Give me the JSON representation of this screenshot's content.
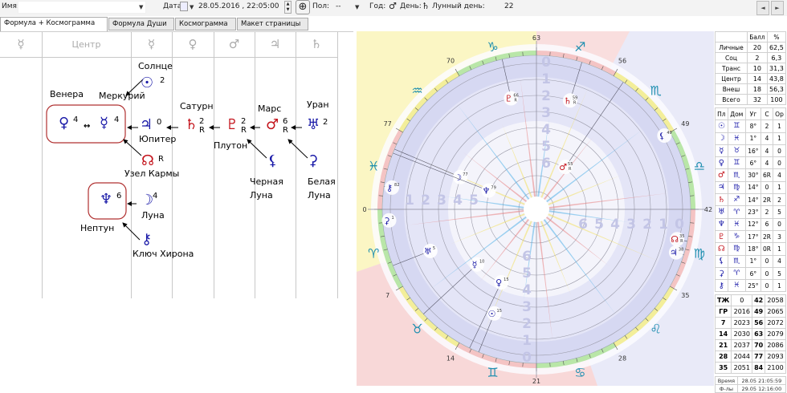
{
  "toolbar": {
    "name_label": "Имя:",
    "name_value": "",
    "date_label": "Дата:",
    "date_value": "28.05.2016 , 22:05:00",
    "gender_label": "Пол:",
    "gender_value": "--",
    "year_label": "Год:",
    "year_glyph": "♂",
    "day_label": "День:",
    "day_glyph": "♄",
    "lunar_day_label": "Лунный день:",
    "lunar_day_value": "22",
    "prev": "◄",
    "next": "►"
  },
  "tabs": [
    {
      "label": "Формула + Космограмма",
      "active": true
    },
    {
      "label": "Формула Души"
    },
    {
      "label": "Космограмма"
    },
    {
      "label": "Макет страницы"
    }
  ],
  "formula": {
    "column_headers": [
      "☿",
      "Центр",
      "☿",
      "♀",
      "♂",
      "♃",
      "♄"
    ],
    "planets": {
      "sun": {
        "name": "Солнце",
        "glyph": "☉",
        "score": "2"
      },
      "venus": {
        "name": "Венера",
        "glyph": "♀",
        "score": "4"
      },
      "mercury": {
        "name": "Меркурий",
        "glyph": "☿",
        "score": "4"
      },
      "jupiter": {
        "name": "Юпитер",
        "glyph": "♃",
        "score": "0"
      },
      "saturn": {
        "name": "Сатурн",
        "glyph": "♄",
        "score": "2",
        "retro": "R"
      },
      "pluto": {
        "name": "Плутон",
        "glyph": "♇",
        "score": "2",
        "retro": "R"
      },
      "mars": {
        "name": "Марс",
        "glyph": "♂",
        "score": "6",
        "retro": "R"
      },
      "uranus": {
        "name": "Уран",
        "glyph": "♅",
        "score": "2"
      },
      "node": {
        "name": "Узел Кармы",
        "glyph": "☊",
        "retro": "R"
      },
      "black_moon": {
        "name1": "Черная",
        "name2": "Луна",
        "glyph": "⚸"
      },
      "white_moon": {
        "name1": "Белая",
        "name2": "Луна",
        "glyph": "⚳"
      },
      "neptune": {
        "name": "Нептун",
        "glyph": "♆",
        "score": "6"
      },
      "moon": {
        "name": "Луна",
        "glyph": "☽",
        "score": "4"
      },
      "chiron": {
        "name": "Ключ Хирона",
        "glyph": "⚷"
      },
      "mutual": "↔",
      "arrow": "←"
    }
  },
  "chart": {
    "degree_labels": [
      "0",
      "7",
      "14",
      "21",
      "28",
      "35",
      "42",
      "49",
      "56",
      "63",
      "70",
      "77"
    ],
    "signs": [
      "♑",
      "♒",
      "♓",
      "♈",
      "♉",
      "♊",
      "♋",
      "♌",
      "♍",
      "♎",
      "♏",
      "♐"
    ],
    "scale_digits": [
      "0",
      "1",
      "2",
      "3",
      "4",
      "5",
      "6"
    ],
    "planets": [
      {
        "id": "pluto",
        "glyph": "♇",
        "value": "66",
        "retro": "R",
        "color": "#c4141c"
      },
      {
        "id": "saturn",
        "glyph": "♄",
        "value": "59",
        "retro": "R",
        "color": "#c4141c"
      },
      {
        "id": "lilith",
        "glyph": "⚸",
        "value": "49",
        "color": "#1a1aa8"
      },
      {
        "id": "mars",
        "glyph": "♂",
        "value": "55",
        "retro": "R",
        "color": "#c4141c"
      },
      {
        "id": "moon",
        "glyph": "☽",
        "value": "77",
        "color": "#1a1aa8"
      },
      {
        "id": "neptune",
        "glyph": "♆",
        "value": "79",
        "color": "#1a1aa8"
      },
      {
        "id": "chiron",
        "glyph": "⚷",
        "value": "82",
        "color": "#1a1aa8"
      },
      {
        "id": "selena",
        "glyph": "⚳",
        "value": "1",
        "color": "#1a1aa8"
      },
      {
        "id": "uranus",
        "glyph": "♅",
        "value": "5",
        "color": "#1a1aa8"
      },
      {
        "id": "mercury",
        "glyph": "☿",
        "value": "10",
        "color": "#1a1aa8"
      },
      {
        "id": "venus",
        "glyph": "♀",
        "value": "15",
        "color": "#1a1aa8"
      },
      {
        "id": "sun",
        "glyph": "☉",
        "value": "15",
        "color": "#1a1aa8"
      },
      {
        "id": "node",
        "glyph": "☊",
        "value": "35",
        "retro": "R",
        "color": "#c4141c"
      },
      {
        "id": "jupiter",
        "glyph": "♃",
        "value": "38",
        "color": "#1a1aa8"
      }
    ]
  },
  "summary": {
    "headers": [
      "",
      "Балл",
      "%"
    ],
    "rows": [
      [
        "Личные",
        "20",
        "62,5"
      ],
      [
        "Соц",
        "2",
        "6,3"
      ],
      [
        "Транс",
        "10",
        "31,3"
      ],
      [
        "Центр",
        "14",
        "43,8"
      ],
      [
        "Внеш",
        "18",
        "56,3"
      ],
      [
        "Всего",
        "32",
        "100"
      ]
    ]
  },
  "positions": {
    "headers": [
      "Пл",
      "Дом",
      "Уг",
      "С",
      "Ор"
    ],
    "rows": [
      {
        "glyph": "☉",
        "color": "#1a1aa8",
        "house": "♊",
        "deg": "8°",
        "s": "2",
        "or": "1"
      },
      {
        "glyph": "☽",
        "color": "#1a1aa8",
        "house": "♓",
        "deg": "1°",
        "s": "4",
        "or": "1"
      },
      {
        "glyph": "☿",
        "color": "#1a1aa8",
        "house": "♉",
        "deg": "16°",
        "s": "4",
        "or": "0"
      },
      {
        "glyph": "♀",
        "color": "#1a1aa8",
        "house": "♊",
        "deg": "6°",
        "s": "4",
        "or": "0"
      },
      {
        "glyph": "♂",
        "color": "#c4141c",
        "house": "♏",
        "deg": "30°",
        "s": "6R",
        "or": "4"
      },
      {
        "glyph": "♃",
        "color": "#1a1aa8",
        "house": "♍",
        "deg": "14°",
        "s": "0",
        "or": "1"
      },
      {
        "glyph": "♄",
        "color": "#c4141c",
        "house": "♐",
        "deg": "14°",
        "s": "2R",
        "or": "2"
      },
      {
        "glyph": "♅",
        "color": "#1a1aa8",
        "house": "♈",
        "deg": "23°",
        "s": "2",
        "or": "5"
      },
      {
        "glyph": "♆",
        "color": "#1a1aa8",
        "house": "♓",
        "deg": "12°",
        "s": "6",
        "or": "0"
      },
      {
        "glyph": "♇",
        "color": "#c4141c",
        "house": "♑",
        "deg": "17°",
        "s": "2R",
        "or": "3"
      },
      {
        "glyph": "☊",
        "color": "#c4141c",
        "house": "♍",
        "deg": "18°",
        "s": "0R",
        "or": "1"
      },
      {
        "glyph": "⚸",
        "color": "#1a1aa8",
        "house": "♏",
        "deg": "1°",
        "s": "0",
        "or": "4"
      },
      {
        "glyph": "⚳",
        "color": "#1a1aa8",
        "house": "♈",
        "deg": "6°",
        "s": "0",
        "or": "5"
      },
      {
        "glyph": "⚷",
        "color": "#1a1aa8",
        "house": "♓",
        "deg": "25°",
        "s": "0",
        "or": "1"
      }
    ]
  },
  "ages": {
    "rows": [
      [
        "ТЖ",
        "0",
        "42",
        "2058"
      ],
      [
        "ГР",
        "2016",
        "49",
        "2065"
      ],
      [
        "7",
        "2023",
        "56",
        "2072"
      ],
      [
        "14",
        "2030",
        "63",
        "2079"
      ],
      [
        "21",
        "2037",
        "70",
        "2086"
      ],
      [
        "28",
        "2044",
        "77",
        "2093"
      ],
      [
        "35",
        "2051",
        "84",
        "2100"
      ]
    ]
  },
  "times": {
    "rows": [
      [
        "Время",
        "28.05 21:05:59"
      ],
      [
        "Ф-лы",
        "29.05 12:16:00"
      ]
    ]
  }
}
